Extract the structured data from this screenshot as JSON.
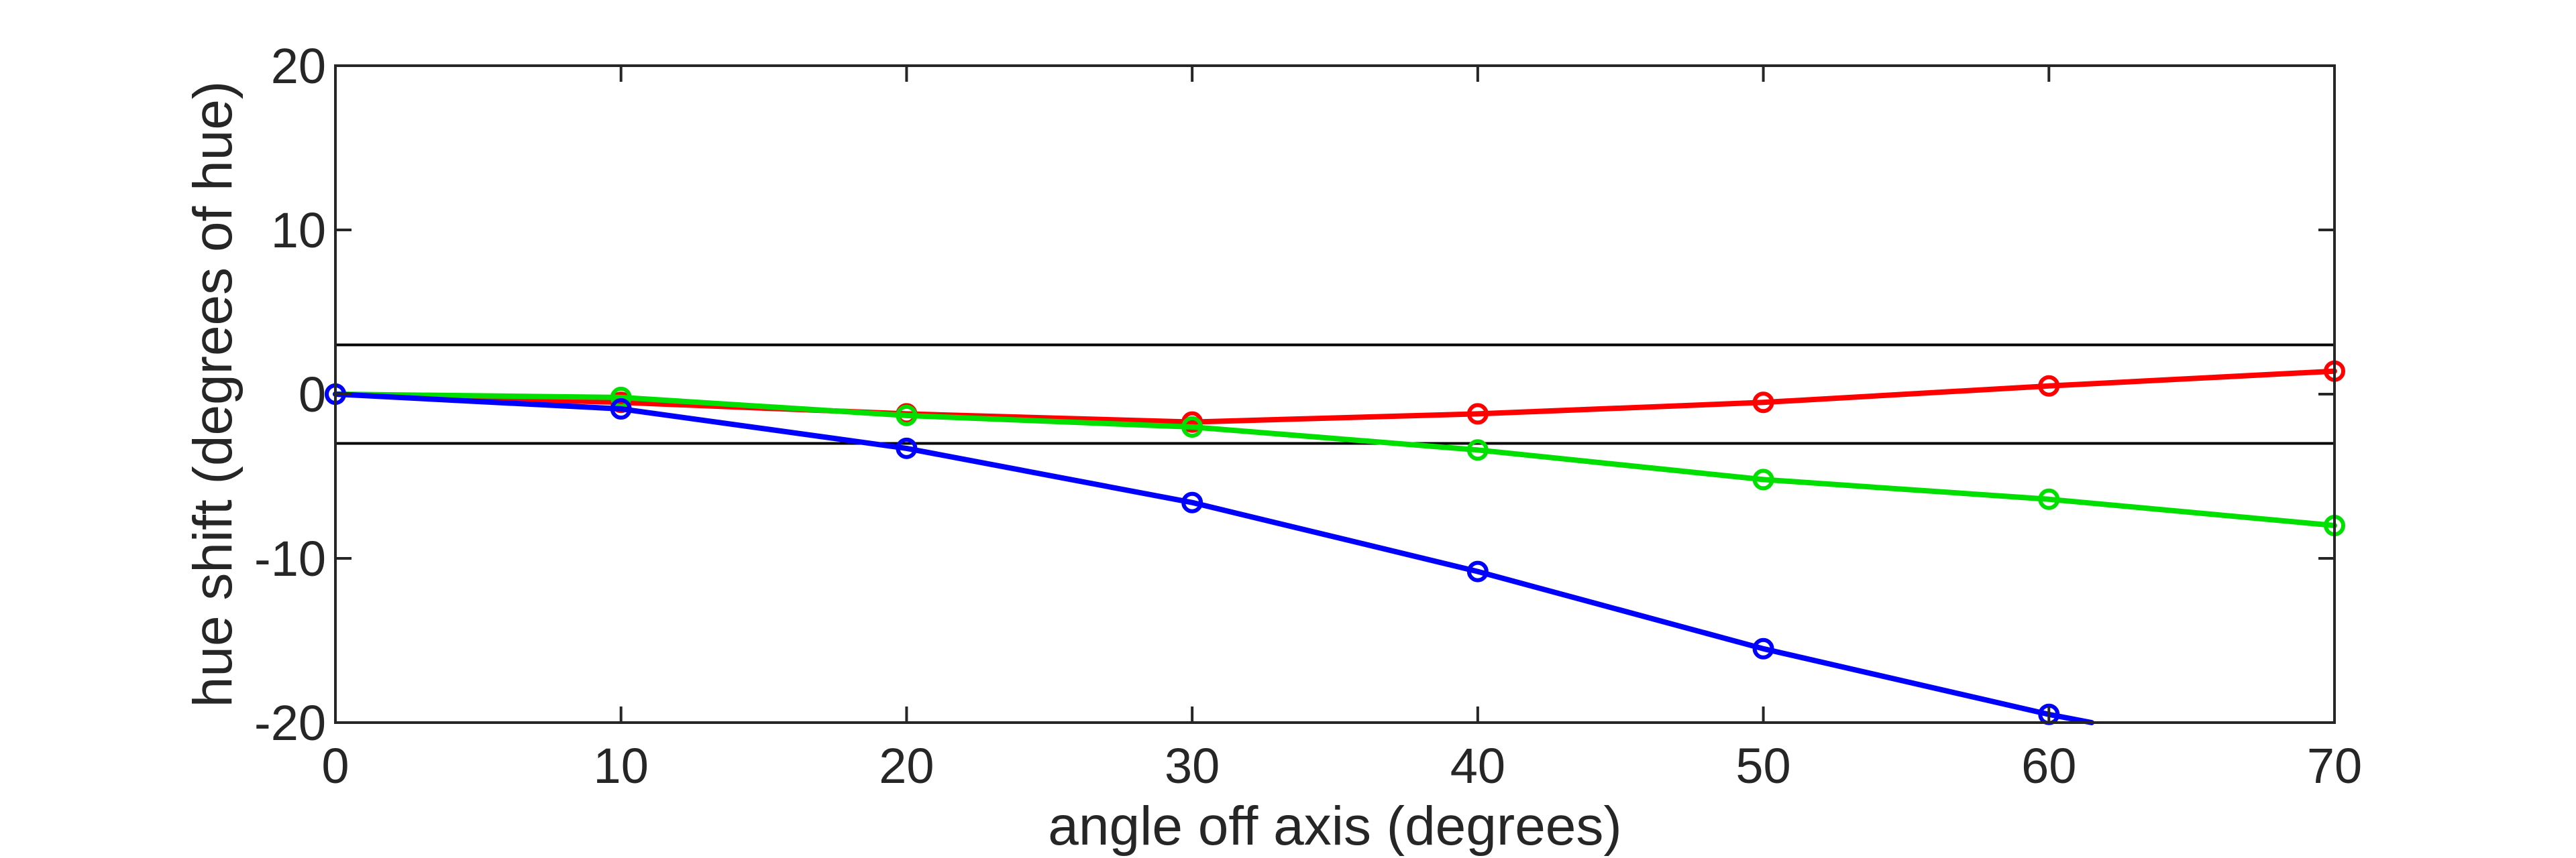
{
  "chart_data": {
    "type": "line",
    "title": "",
    "xlabel": "angle off axis (degrees)",
    "ylabel": "hue shift (degrees of hue)",
    "xlim": [
      0,
      70
    ],
    "ylim": [
      -20,
      20
    ],
    "xticks": [
      "0",
      "10",
      "20",
      "30",
      "40",
      "50",
      "60",
      "70"
    ],
    "yticks": [
      "20",
      "10",
      "0",
      "-10",
      "-20"
    ],
    "grid": false,
    "reference_lines": [
      3,
      -3
    ],
    "series": [
      {
        "color": "#ff0000",
        "x": [
          0,
          10,
          20,
          30,
          40,
          50,
          60,
          70
        ],
        "y": [
          0,
          -0.5,
          -1.2,
          -1.7,
          -1.2,
          -0.5,
          0.5,
          1.4
        ]
      },
      {
        "color": "#00e000",
        "x": [
          0,
          10,
          20,
          30,
          40,
          50,
          60,
          70
        ],
        "y": [
          0,
          -0.2,
          -1.3,
          -2.0,
          -3.4,
          -5.2,
          -6.4,
          -8.0
        ]
      },
      {
        "color": "#0000ff",
        "x": [
          0,
          10,
          20,
          30,
          40,
          50,
          60,
          61.5
        ],
        "y": [
          0,
          -0.9,
          -3.3,
          -6.6,
          -10.8,
          -15.5,
          -19.5,
          -20.0
        ],
        "markers": [
          true,
          true,
          true,
          true,
          true,
          true,
          true,
          false
        ]
      }
    ]
  }
}
